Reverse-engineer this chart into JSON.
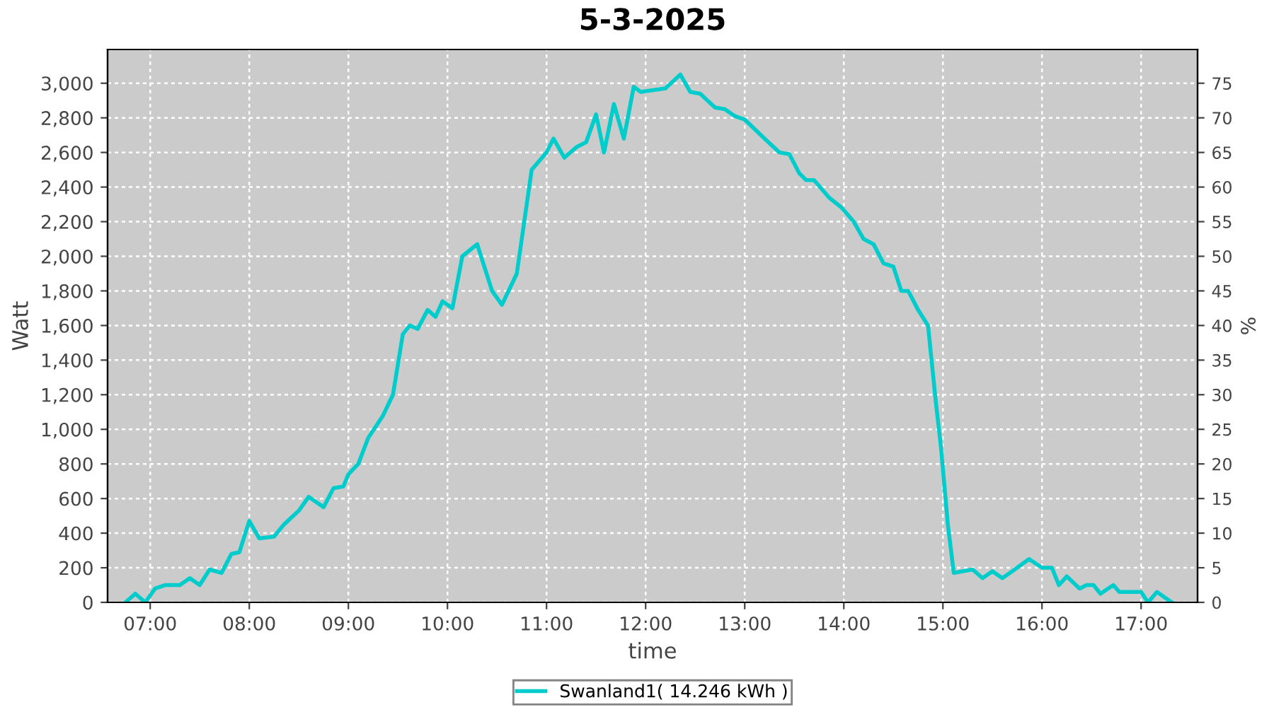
{
  "chart_data": {
    "type": "line",
    "title": "5-3-2025",
    "xlabel": "time",
    "ylabel": "Watt",
    "y2label": "%",
    "x": [
      6.75,
      6.85,
      6.95,
      7.05,
      7.15,
      7.3,
      7.4,
      7.5,
      7.6,
      7.72,
      7.82,
      7.9,
      8.0,
      8.1,
      8.25,
      8.35,
      8.5,
      8.6,
      8.75,
      8.85,
      8.95,
      9.0,
      9.1,
      9.2,
      9.35,
      9.45,
      9.55,
      9.62,
      9.7,
      9.8,
      9.88,
      9.95,
      10.05,
      10.15,
      10.3,
      10.45,
      10.55,
      10.7,
      10.85,
      11.0,
      11.07,
      11.18,
      11.3,
      11.4,
      11.5,
      11.58,
      11.68,
      11.78,
      11.88,
      11.95,
      12.2,
      12.35,
      12.45,
      12.55,
      12.7,
      12.8,
      12.9,
      13.0,
      13.2,
      13.35,
      13.45,
      13.55,
      13.62,
      13.7,
      13.85,
      13.98,
      14.1,
      14.2,
      14.3,
      14.4,
      14.5,
      14.58,
      14.65,
      14.75,
      14.85,
      14.93,
      14.98,
      15.05,
      15.11,
      15.2,
      15.3,
      15.4,
      15.5,
      15.6,
      15.7,
      15.87,
      16.0,
      16.1,
      16.17,
      16.25,
      16.38,
      16.45,
      16.52,
      16.59,
      16.72,
      16.78,
      16.85,
      17.0,
      17.07,
      17.16,
      17.31
    ],
    "series": [
      {
        "name": "Swanland1( 14.246 kWh )",
        "color": "#00cccc",
        "values": [
          0,
          50,
          0,
          80,
          100,
          100,
          140,
          100,
          190,
          170,
          280,
          290,
          470,
          370,
          380,
          450,
          530,
          610,
          550,
          660,
          670,
          740,
          800,
          950,
          1080,
          1200,
          1550,
          1600,
          1580,
          1690,
          1650,
          1740,
          1700,
          2000,
          2070,
          1800,
          1720,
          1900,
          2500,
          2600,
          2680,
          2570,
          2630,
          2660,
          2820,
          2600,
          2880,
          2680,
          2980,
          2950,
          2970,
          3050,
          2950,
          2940,
          2860,
          2850,
          2810,
          2790,
          2680,
          2600,
          2590,
          2480,
          2440,
          2440,
          2340,
          2280,
          2200,
          2100,
          2070,
          1960,
          1940,
          1800,
          1800,
          1690,
          1600,
          1150,
          900,
          450,
          170,
          180,
          190,
          140,
          180,
          140,
          180,
          250,
          200,
          200,
          100,
          150,
          80,
          100,
          100,
          50,
          100,
          60,
          60,
          60,
          0,
          60,
          0
        ]
      }
    ],
    "xlim": [
      6.57,
      17.57
    ],
    "xticks": [
      {
        "value": 7,
        "label": "07:00"
      },
      {
        "value": 8,
        "label": "08:00"
      },
      {
        "value": 9,
        "label": "09:00"
      },
      {
        "value": 10,
        "label": "10:00"
      },
      {
        "value": 11,
        "label": "11:00"
      },
      {
        "value": 12,
        "label": "12:00"
      },
      {
        "value": 13,
        "label": "13:00"
      },
      {
        "value": 14,
        "label": "14:00"
      },
      {
        "value": 15,
        "label": "15:00"
      },
      {
        "value": 16,
        "label": "16:00"
      },
      {
        "value": 17,
        "label": "17:00"
      }
    ],
    "ylim": [
      0,
      3195
    ],
    "yticks": [
      0,
      200,
      400,
      600,
      800,
      {
        "value": 1000,
        "label": "1,000"
      },
      {
        "value": 1200,
        "label": "1,200"
      },
      {
        "value": 1400,
        "label": "1,400"
      },
      {
        "value": 1600,
        "label": "1,600"
      },
      {
        "value": 1800,
        "label": "1,800"
      },
      {
        "value": 2000,
        "label": "2,000"
      },
      {
        "value": 2200,
        "label": "2,200"
      },
      {
        "value": 2400,
        "label": "2,400"
      },
      {
        "value": 2600,
        "label": "2,600"
      },
      {
        "value": 2800,
        "label": "2,800"
      },
      {
        "value": 3000,
        "label": "3,000"
      }
    ],
    "y2lim": [
      0,
      79.875
    ],
    "y2ticks": [
      0,
      5,
      10,
      15,
      20,
      25,
      30,
      35,
      40,
      45,
      50,
      55,
      60,
      65,
      70,
      75
    ],
    "grid": true,
    "legend": "bottom",
    "marker": "none",
    "line_style": "solid"
  }
}
